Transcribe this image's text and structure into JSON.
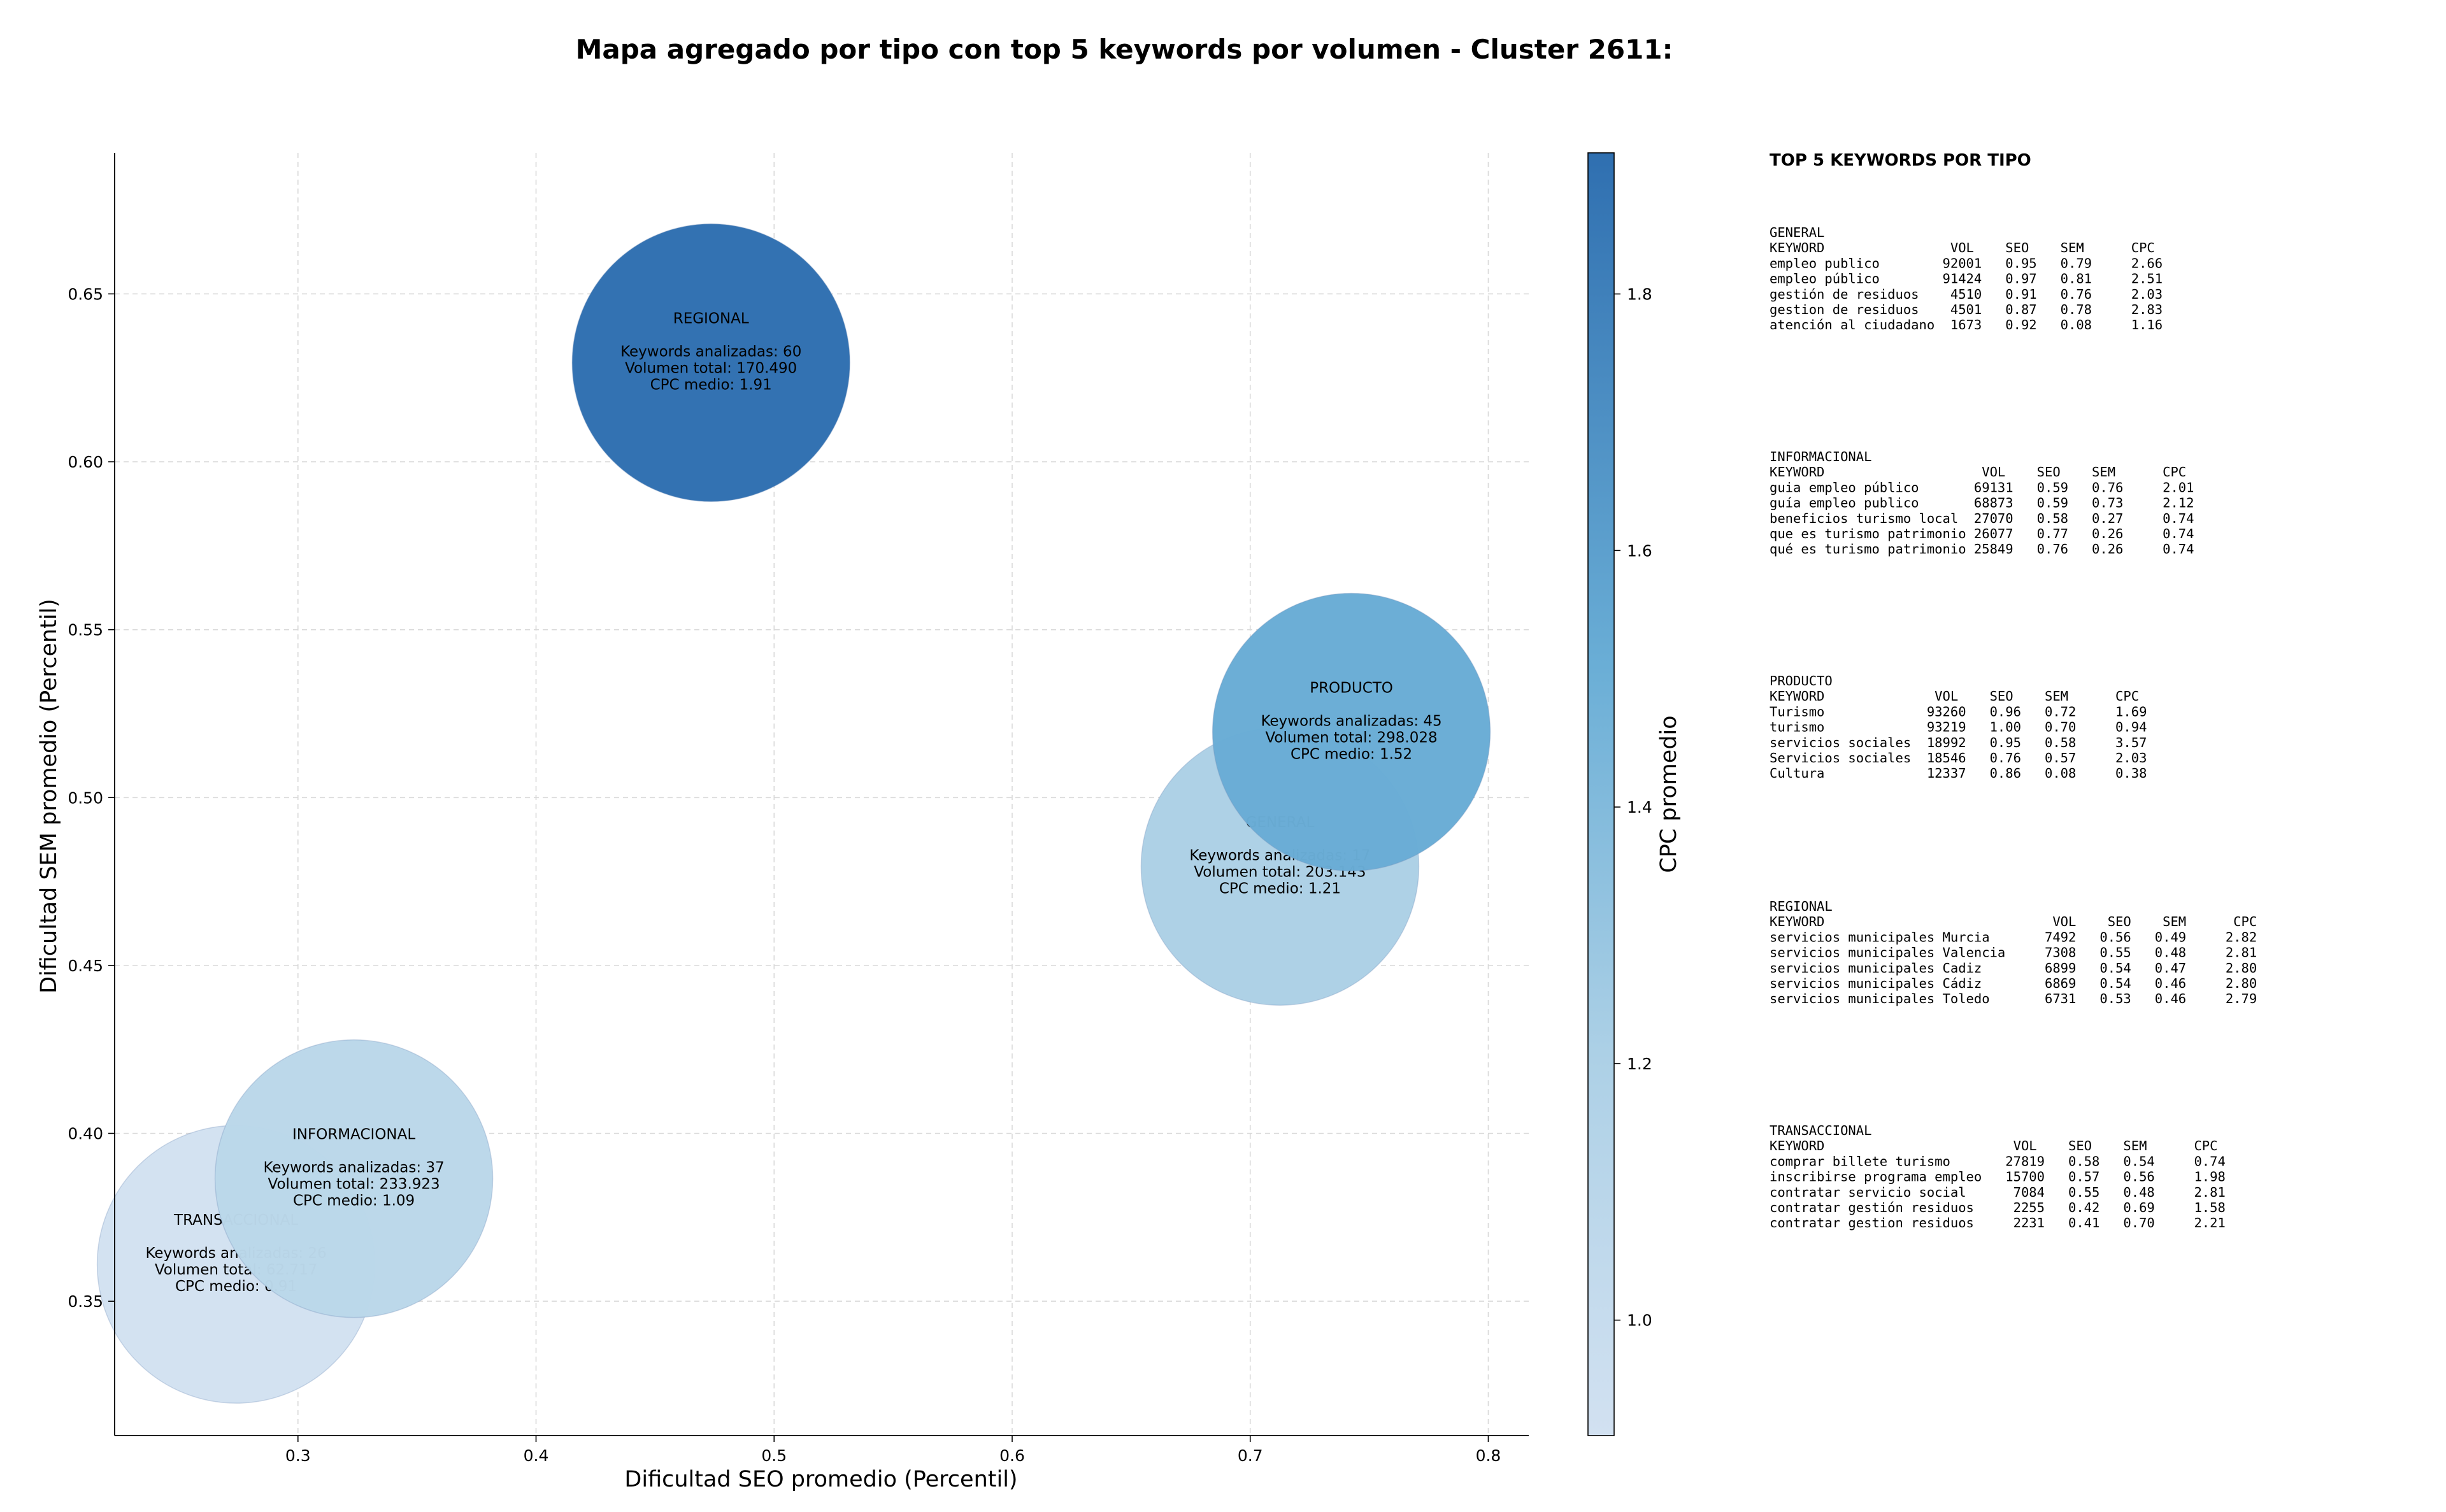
{
  "chart_data": {
    "type": "scatter",
    "title": "Mapa agregado por tipo con top 5 keywords por volumen - Cluster 2611:",
    "xlabel": "Dificultad SEO promedio (Percentil)",
    "ylabel": "Dificultad SEM promedio (Percentil)",
    "xlim": [
      0.223,
      0.817
    ],
    "ylim": [
      0.31,
      0.692
    ],
    "xticks": [
      0.3,
      0.4,
      0.5,
      0.6,
      0.7,
      0.8
    ],
    "xtick_labels": [
      "0.3",
      "0.4",
      "0.5",
      "0.6",
      "0.7",
      "0.8"
    ],
    "yticks": [
      0.35,
      0.4,
      0.45,
      0.5,
      0.55,
      0.6,
      0.65
    ],
    "ytick_labels": [
      "0.35",
      "0.40",
      "0.45",
      "0.50",
      "0.55",
      "0.60",
      "0.65"
    ],
    "grid": true,
    "colorbar": {
      "label": "CPC promedio",
      "range": [
        0.91,
        1.91
      ],
      "ticks": [
        1.0,
        1.2,
        1.4,
        1.6,
        1.8
      ],
      "tick_labels": [
        "1.0",
        "1.2",
        "1.4",
        "1.6",
        "1.8"
      ],
      "color_low": "#d2e1f1",
      "color_high": "#2f6fb0"
    },
    "points": [
      {
        "tipo": "TRANSACCIONAL",
        "x": 0.274,
        "y": 0.361,
        "keywords": 26,
        "volumen": 62717,
        "cpc": 0.91,
        "lines": [
          "TRANSACCIONAL",
          "",
          "Keywords analizadas: 26",
          "Volumen total: 62.717",
          "CPC medio: 0.91"
        ]
      },
      {
        "tipo": "INFORMACIONAL",
        "x": 0.3235,
        "y": 0.3865,
        "keywords": 37,
        "volumen": 233923,
        "cpc": 1.09,
        "lines": [
          "INFORMACIONAL",
          "",
          "Keywords analizadas: 37",
          "Volumen total: 233.923",
          "CPC medio: 1.09"
        ]
      },
      {
        "tipo": "GENERAL",
        "x": 0.7125,
        "y": 0.4795,
        "keywords": 17,
        "volumen": 203143,
        "cpc": 1.21,
        "lines": [
          "GENERAL",
          "",
          "Keywords analizadas: 17",
          "Volumen total: 203.143",
          "CPC medio: 1.21"
        ]
      },
      {
        "tipo": "PRODUCTO",
        "x": 0.7425,
        "y": 0.5195,
        "keywords": 45,
        "volumen": 298028,
        "cpc": 1.52,
        "lines": [
          "PRODUCTO",
          "",
          "Keywords analizadas: 45",
          "Volumen total: 298.028",
          "CPC medio: 1.52"
        ]
      },
      {
        "tipo": "REGIONAL",
        "x": 0.4735,
        "y": 0.6295,
        "keywords": 60,
        "volumen": 170490,
        "cpc": 1.91,
        "lines": [
          "REGIONAL",
          "",
          "Keywords analizadas: 60",
          "Volumen total: 170.490",
          "CPC medio: 1.91"
        ]
      }
    ]
  },
  "keyword_tables": {
    "title": "TOP 5 KEYWORDS POR TIPO",
    "sections": [
      {
        "name": "GENERAL",
        "lines": [
          "GENERAL",
          "KEYWORD                VOL    SEO    SEM      CPC",
          "empleo publico        92001   0.95   0.79     2.66",
          "empleo público        91424   0.97   0.81     2.51",
          "gestión de residuos    4510   0.91   0.76     2.03",
          "gestion de residuos    4501   0.87   0.78     2.83",
          "atención al ciudadano  1673   0.92   0.08     1.16"
        ]
      },
      {
        "name": "INFORMACIONAL",
        "lines": [
          "INFORMACIONAL",
          "KEYWORD                    VOL    SEO    SEM      CPC",
          "guia empleo público       69131   0.59   0.76     2.01",
          "guía empleo publico       68873   0.59   0.73     2.12",
          "beneficios turismo local  27070   0.58   0.27     0.74",
          "que es turismo patrimonio 26077   0.77   0.26     0.74",
          "qué es turismo patrimonio 25849   0.76   0.26     0.74"
        ]
      },
      {
        "name": "PRODUCTO",
        "lines": [
          "PRODUCTO",
          "KEYWORD              VOL    SEO    SEM      CPC",
          "Turismo             93260   0.96   0.72     1.69",
          "turismo             93219   1.00   0.70     0.94",
          "servicios sociales  18992   0.95   0.58     3.57",
          "Servicios sociales  18546   0.76   0.57     2.03",
          "Cultura             12337   0.86   0.08     0.38"
        ]
      },
      {
        "name": "REGIONAL",
        "lines": [
          "REGIONAL",
          "KEYWORD                             VOL    SEO    SEM      CPC",
          "servicios municipales Murcia       7492   0.56   0.49     2.82",
          "servicios municipales Valencia     7308   0.55   0.48     2.81",
          "servicios municipales Cadiz        6899   0.54   0.47     2.80",
          "servicios municipales Cádiz        6869   0.54   0.46     2.80",
          "servicios municipales Toledo       6731   0.53   0.46     2.79"
        ]
      },
      {
        "name": "TRANSACCIONAL",
        "lines": [
          "TRANSACCIONAL",
          "KEYWORD                        VOL    SEO    SEM      CPC",
          "comprar billete turismo       27819   0.58   0.54     0.74",
          "inscribirse programa empleo   15700   0.57   0.56     1.98",
          "contratar servicio social      7084   0.55   0.48     2.81",
          "contratar gestión residuos     2255   0.42   0.69     1.58",
          "contratar gestion residuos     2231   0.41   0.70     2.21"
        ]
      }
    ]
  }
}
